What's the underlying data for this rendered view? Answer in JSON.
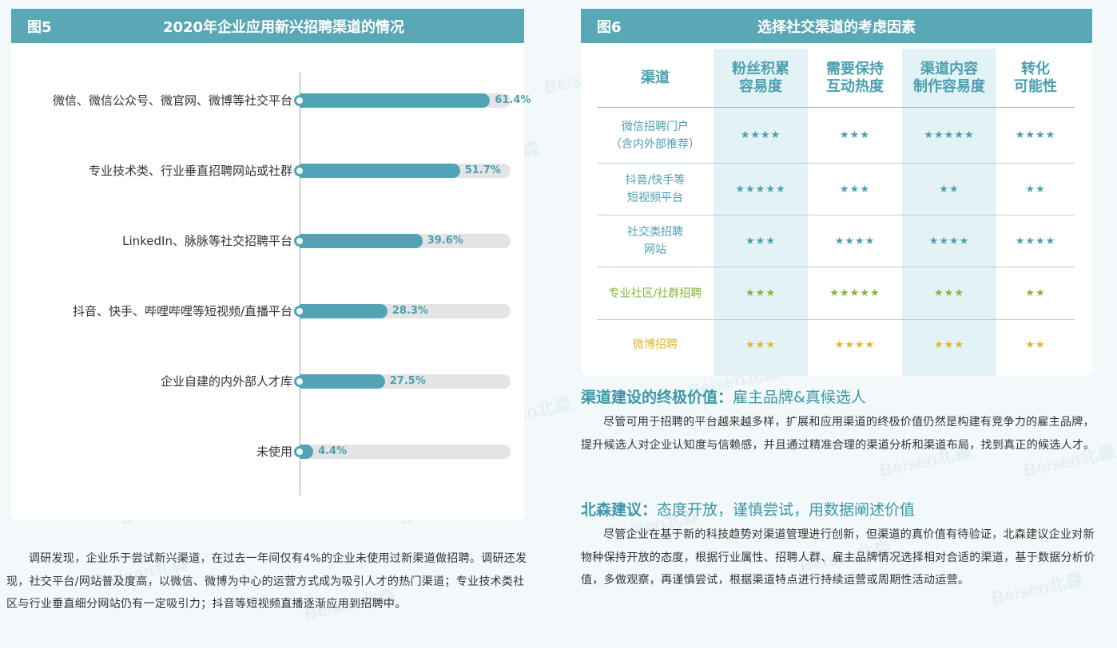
{
  "watermark": "Beisen北森",
  "figure5": {
    "label": "图5",
    "title": "2020年企业应用新兴招聘渠道的情况"
  },
  "chart_data": {
    "type": "bar",
    "orientation": "horizontal",
    "title": "2020年企业应用新兴招聘渠道的情况",
    "categories": [
      "微信、微信公众号、微官网、微博等社交平台",
      "专业技术类、行业垂直招聘网站或社群",
      "LinkedIn、脉脉等社交招聘平台",
      "抖音、快手、哔哩哔哩等短视频/直播平台",
      "企业自建的内外部人才库",
      "未使用"
    ],
    "values": [
      61.4,
      51.7,
      39.6,
      28.3,
      27.5,
      4.4
    ],
    "value_labels": [
      "61.4%",
      "51.7%",
      "39.6%",
      "28.3%",
      "27.5%",
      "4.4%"
    ],
    "xlim": [
      0,
      100
    ],
    "unit": "%",
    "bar_color": "#52a4b5",
    "track_color": "#e4e4e4"
  },
  "figure6": {
    "label": "图6",
    "title": "选择社交渠道的考虑因素",
    "headers": [
      "渠道",
      "粉丝积累\n容易度",
      "需要保持\n互动热度",
      "渠道内容\n制作容易度",
      "转化\n可能性"
    ],
    "rows": [
      {
        "name": "微信招聘门户\n（含内外部推荐）",
        "tone": "blue",
        "stars": [
          "★★★★",
          "★★★",
          "★★★★★",
          "★★★★"
        ]
      },
      {
        "name": "抖音/快手等\n短视频平台",
        "tone": "blue",
        "stars": [
          "★★★★★",
          "★★★",
          "★★",
          "★★"
        ]
      },
      {
        "name": "社交类招聘\n网站",
        "tone": "blue",
        "stars": [
          "★★★",
          "★★★★",
          "★★★★",
          "★★★★"
        ]
      },
      {
        "name": "专业社区/社群招聘",
        "tone": "green",
        "stars": [
          "★★★",
          "★★★★★",
          "★★★",
          "★★"
        ]
      },
      {
        "name": "微博招聘",
        "tone": "yellow",
        "stars": [
          "★★★",
          "★★★★",
          "★★★",
          "★★"
        ]
      }
    ],
    "tone_colors": {
      "blue": "#4a9fb0",
      "green": "#8ab33c",
      "yellow": "#e2b531"
    }
  },
  "left_paragraph": "调研发现，企业乐于尝试新兴渠道，在过去一年间仅有4%的企业未使用过新渠道做招聘。调研还发现，社交平台/网站普及度高，以微信、微博为中心的运营方式成为吸引人才的热门渠道；专业技术类社区与行业垂直细分网站仍有一定吸引力；抖音等短视频直播逐渐应用到招聘中。",
  "section1": {
    "title_key": "渠道建设的终极价值：",
    "title_value": "雇主品牌&真候选人",
    "body": "尽管可用于招聘的平台越来越多样，扩展和应用渠道的终极价值仍然是构建有竞争力的雇主品牌，提升候选人对企业认知度与信赖感，并且通过精准合理的渠道分析和渠道布局，找到真正的候选人才。"
  },
  "section2": {
    "title_key": "北森建议：",
    "title_value": "态度开放，谨慎尝试，用数据阐述价值",
    "body": "尽管企业在基于新的科技趋势对渠道管理进行创新，但渠道的真价值有待验证，北森建议企业对新物种保持开放的态度，根据行业属性、招聘人群、雇主品牌情况选择相对合适的渠道，基于数据分析价值，多做观察，再谨慎尝试，根据渠道特点进行持续运营或周期性活动运营。"
  }
}
